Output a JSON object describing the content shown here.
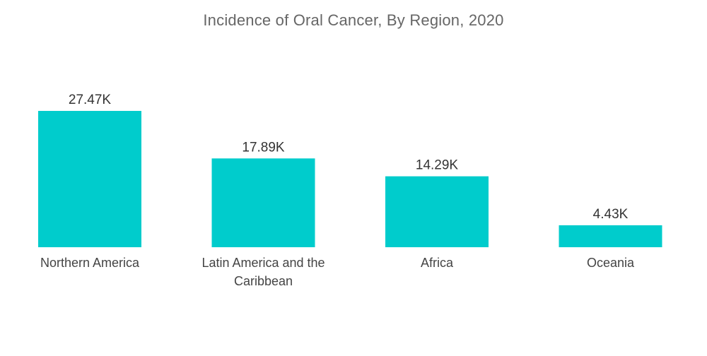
{
  "chart_data": {
    "type": "bar",
    "title": "Incidence of Oral Cancer, By Region, 2020",
    "xlabel": "",
    "ylabel": "",
    "categories": [
      [
        "Northern America"
      ],
      [
        "Latin America and the",
        "Caribbean"
      ],
      [
        "Africa"
      ],
      [
        "Oceania"
      ]
    ],
    "values": [
      27.47,
      17.89,
      14.29,
      4.43
    ],
    "value_labels": [
      "27.47K",
      "17.89K",
      "14.29K",
      "4.43K"
    ],
    "unit": "K",
    "ylim": [
      0,
      27.47
    ],
    "grid": false,
    "legend": "none",
    "colors": {
      "bar": "#00CCCC"
    }
  }
}
